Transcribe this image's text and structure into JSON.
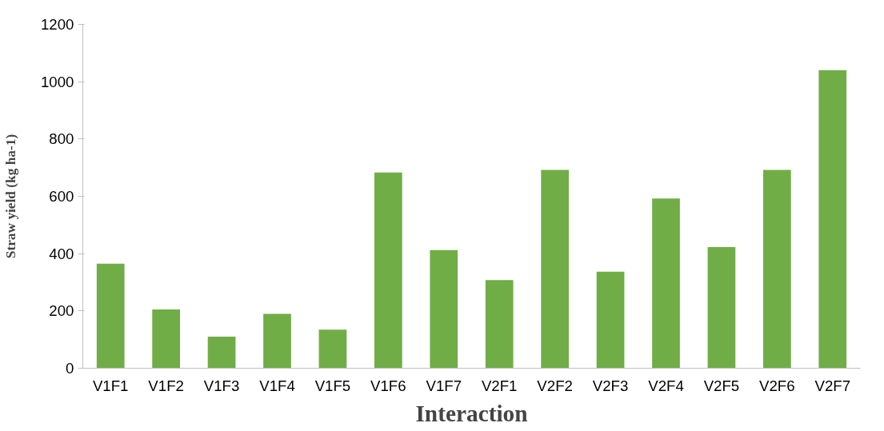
{
  "chart_data": {
    "type": "bar",
    "xlabel": "Interaction",
    "ylabel": "Straw yield (kg ha-1)",
    "categories": [
      "V1F1",
      "V1F2",
      "V1F3",
      "V1F4",
      "V1F5",
      "V1F6",
      "V1F7",
      "V2F1",
      "V2F2",
      "V2F3",
      "V2F4",
      "V2F5",
      "V2F6",
      "V2F7"
    ],
    "values": [
      365,
      205,
      110,
      190,
      135,
      683,
      412,
      308,
      692,
      337,
      592,
      423,
      692,
      1040
    ],
    "color": "#70ad47",
    "ylim": [
      0,
      1200
    ],
    "yticks": [
      0,
      200,
      400,
      600,
      800,
      1000,
      1200
    ],
    "grid": false
  }
}
